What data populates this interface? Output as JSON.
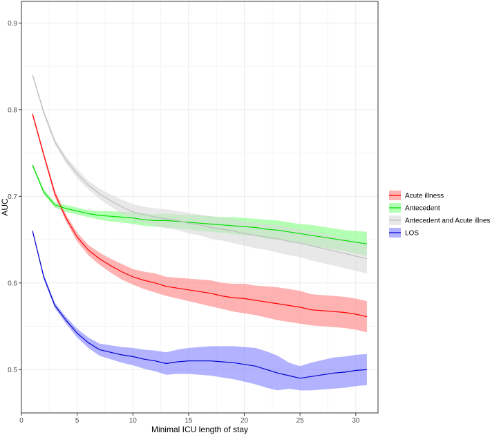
{
  "chart_data": {
    "type": "line",
    "title": "",
    "xlabel": "Minimal ICU length of stay",
    "ylabel": "AUC",
    "xlim": [
      0,
      32
    ],
    "ylim": [
      0.45,
      0.925
    ],
    "x_ticks": [
      0,
      5,
      10,
      15,
      20,
      25,
      30
    ],
    "y_ticks": [
      0.5,
      0.6,
      0.7,
      0.8,
      0.9
    ],
    "grid": true,
    "legend_position": "right",
    "x": [
      1,
      2,
      3,
      4,
      5,
      6,
      7,
      8,
      9,
      10,
      11,
      12,
      13,
      14,
      15,
      16,
      17,
      18,
      19,
      20,
      21,
      22,
      23,
      24,
      25,
      26,
      27,
      28,
      29,
      30,
      31
    ],
    "series": [
      {
        "name": "Acute illness",
        "color": "#ff0000",
        "fill": "#ff7f7f",
        "values": [
          0.795,
          0.748,
          0.703,
          0.675,
          0.653,
          0.638,
          0.628,
          0.62,
          0.613,
          0.607,
          0.603,
          0.6,
          0.596,
          0.594,
          0.592,
          0.59,
          0.588,
          0.585,
          0.583,
          0.582,
          0.58,
          0.578,
          0.576,
          0.574,
          0.572,
          0.569,
          0.568,
          0.567,
          0.566,
          0.564,
          0.561
        ],
        "lower": [
          0.792,
          0.745,
          0.699,
          0.671,
          0.648,
          0.632,
          0.621,
          0.612,
          0.604,
          0.598,
          0.593,
          0.589,
          0.585,
          0.582,
          0.579,
          0.576,
          0.573,
          0.57,
          0.567,
          0.565,
          0.563,
          0.56,
          0.557,
          0.555,
          0.553,
          0.551,
          0.55,
          0.549,
          0.548,
          0.546,
          0.543
        ],
        "upper": [
          0.798,
          0.751,
          0.707,
          0.679,
          0.658,
          0.644,
          0.635,
          0.628,
          0.622,
          0.616,
          0.613,
          0.611,
          0.607,
          0.606,
          0.605,
          0.604,
          0.603,
          0.6,
          0.599,
          0.599,
          0.597,
          0.596,
          0.595,
          0.593,
          0.591,
          0.587,
          0.586,
          0.585,
          0.584,
          0.582,
          0.579
        ]
      },
      {
        "name": "Antecedent",
        "color": "#00dd00",
        "fill": "#80ff80",
        "values": [
          0.736,
          0.705,
          0.69,
          0.686,
          0.683,
          0.68,
          0.678,
          0.677,
          0.676,
          0.675,
          0.673,
          0.672,
          0.672,
          0.671,
          0.67,
          0.669,
          0.668,
          0.667,
          0.666,
          0.665,
          0.664,
          0.662,
          0.661,
          0.659,
          0.657,
          0.655,
          0.653,
          0.651,
          0.649,
          0.647,
          0.645
        ],
        "lower": [
          0.734,
          0.702,
          0.687,
          0.682,
          0.679,
          0.676,
          0.673,
          0.671,
          0.67,
          0.668,
          0.666,
          0.665,
          0.664,
          0.663,
          0.662,
          0.66,
          0.659,
          0.658,
          0.656,
          0.655,
          0.654,
          0.651,
          0.65,
          0.648,
          0.646,
          0.643,
          0.641,
          0.639,
          0.637,
          0.634,
          0.631
        ],
        "upper": [
          0.738,
          0.708,
          0.693,
          0.69,
          0.687,
          0.684,
          0.683,
          0.683,
          0.682,
          0.682,
          0.68,
          0.679,
          0.68,
          0.679,
          0.678,
          0.678,
          0.677,
          0.676,
          0.676,
          0.675,
          0.674,
          0.673,
          0.672,
          0.67,
          0.668,
          0.667,
          0.665,
          0.663,
          0.661,
          0.66,
          0.659
        ]
      },
      {
        "name": "Antecedent and Acute illness",
        "color": "#bdbdbd",
        "fill": "#d9d9d9",
        "values": [
          0.84,
          0.797,
          0.763,
          0.742,
          0.726,
          0.713,
          0.703,
          0.695,
          0.688,
          0.682,
          0.679,
          0.676,
          0.674,
          0.672,
          0.669,
          0.667,
          0.664,
          0.662,
          0.66,
          0.657,
          0.655,
          0.653,
          0.651,
          0.648,
          0.646,
          0.643,
          0.64,
          0.637,
          0.634,
          0.631,
          0.628
        ],
        "lower": [
          0.838,
          0.794,
          0.76,
          0.738,
          0.721,
          0.708,
          0.697,
          0.688,
          0.68,
          0.673,
          0.67,
          0.666,
          0.663,
          0.661,
          0.657,
          0.655,
          0.651,
          0.649,
          0.646,
          0.643,
          0.64,
          0.638,
          0.635,
          0.632,
          0.63,
          0.626,
          0.623,
          0.62,
          0.617,
          0.614,
          0.611
        ],
        "upper": [
          0.842,
          0.8,
          0.766,
          0.746,
          0.731,
          0.718,
          0.709,
          0.702,
          0.696,
          0.691,
          0.688,
          0.686,
          0.685,
          0.683,
          0.681,
          0.679,
          0.677,
          0.675,
          0.674,
          0.671,
          0.67,
          0.668,
          0.667,
          0.664,
          0.662,
          0.66,
          0.657,
          0.654,
          0.651,
          0.648,
          0.645
        ]
      },
      {
        "name": "LOS",
        "color": "#0000cc",
        "fill": "#7f7fff",
        "values": [
          0.66,
          0.607,
          0.574,
          0.557,
          0.542,
          0.531,
          0.523,
          0.52,
          0.517,
          0.515,
          0.512,
          0.51,
          0.507,
          0.509,
          0.51,
          0.51,
          0.51,
          0.509,
          0.508,
          0.506,
          0.504,
          0.5,
          0.496,
          0.493,
          0.49,
          0.492,
          0.494,
          0.496,
          0.497,
          0.499,
          0.5
        ],
        "lower": [
          0.658,
          0.604,
          0.571,
          0.553,
          0.537,
          0.525,
          0.516,
          0.512,
          0.508,
          0.505,
          0.501,
          0.498,
          0.494,
          0.495,
          0.495,
          0.494,
          0.493,
          0.491,
          0.489,
          0.486,
          0.483,
          0.479,
          0.476,
          0.478,
          0.476,
          0.476,
          0.477,
          0.478,
          0.479,
          0.481,
          0.482
        ],
        "upper": [
          0.662,
          0.61,
          0.577,
          0.561,
          0.547,
          0.537,
          0.53,
          0.528,
          0.526,
          0.525,
          0.523,
          0.522,
          0.52,
          0.523,
          0.525,
          0.526,
          0.527,
          0.527,
          0.527,
          0.526,
          0.525,
          0.521,
          0.516,
          0.508,
          0.504,
          0.508,
          0.511,
          0.514,
          0.515,
          0.517,
          0.518
        ]
      }
    ]
  }
}
